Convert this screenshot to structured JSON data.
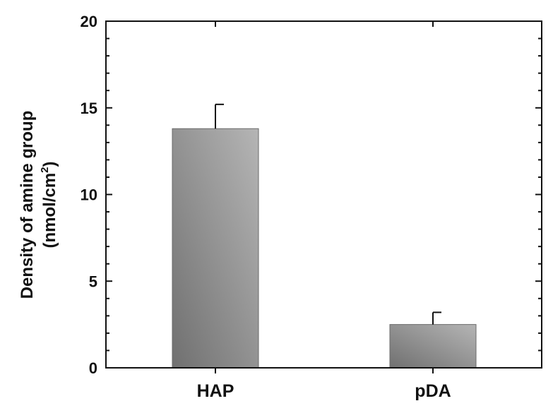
{
  "chart_data": {
    "type": "bar",
    "categories": [
      "HAP",
      "pDA"
    ],
    "values": [
      13.8,
      2.5
    ],
    "error": [
      1.4,
      0.7
    ],
    "ylabel_line1": "Density of amine group",
    "ylabel_line2_main": "(nmol/cm",
    "ylabel_line2_sup": "2",
    "ylabel_line2_end": ")",
    "ylim": [
      0,
      20
    ],
    "yticks": [
      "0",
      "5",
      "10",
      "15",
      "20"
    ],
    "grid": false,
    "bar_color": "#8a8a8a"
  }
}
